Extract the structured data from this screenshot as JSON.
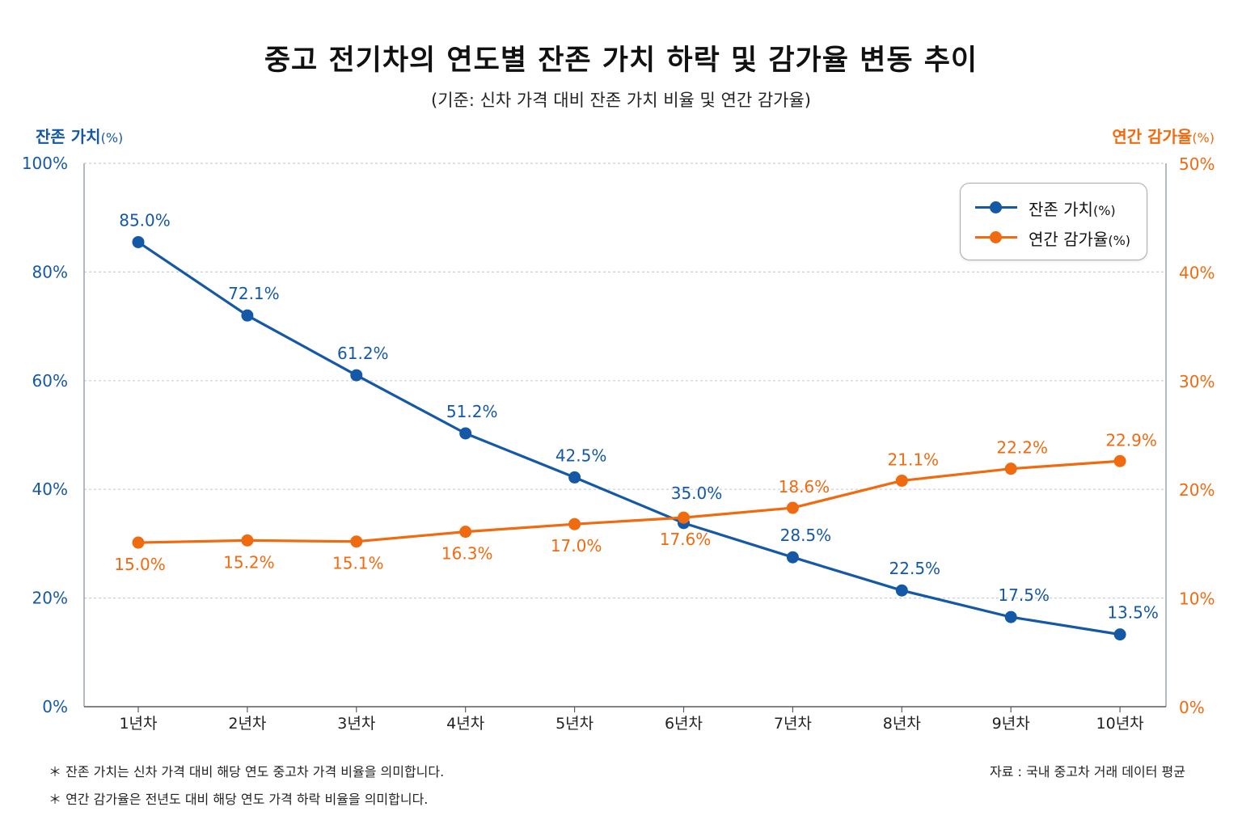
{
  "title": "중고 전기차의 연도별 잔존 가치 하락 및 감가율 변동 추이",
  "subtitle": "(기준: 신차 가격 대비 잔존 가치 비율 및 연간 감가율)",
  "axis": {
    "left_title": "잔존 가치",
    "left_unit": "(%)",
    "right_title": "연간 감가율",
    "right_unit": "(%)"
  },
  "legend": {
    "position": "top-right",
    "items": [
      {
        "name": "잔존 가치",
        "unit": "(%)"
      },
      {
        "name": "연간 감가율",
        "unit": "(%)"
      }
    ]
  },
  "notes": [
    "＊ 잔존 가치는 신차 가격 대비 해당 연도 중고차 가격 비율을 의미합니다.",
    "＊ 연간 감가율은 전년도 대비 해당 연도 가격 하락 비율을 의미합니다."
  ],
  "source": "자료 : 국내 중고차 거래 데이터 평균",
  "colors": {
    "residual": "#1558a6",
    "depreciation": "#f06a10",
    "grid": "#c9ced6",
    "axis": "#9aa3b0"
  },
  "chart_data": {
    "type": "line",
    "categories": [
      "1년차",
      "2년차",
      "3년차",
      "4년차",
      "5년차",
      "6년차",
      "7년차",
      "8년차",
      "9년차",
      "10년차"
    ],
    "y_left": {
      "range": [
        0,
        100
      ],
      "ticks": [
        "0%",
        "20%",
        "40%",
        "60%",
        "80%",
        "100%"
      ]
    },
    "y_right": {
      "range": [
        0,
        50
      ],
      "ticks": [
        "0%",
        "10%",
        "20%",
        "30%",
        "40%",
        "50%"
      ]
    },
    "grid": true,
    "series": [
      {
        "name": "잔존 가치(%)",
        "axis": "left",
        "values": [
          85.0,
          72.1,
          61.2,
          51.2,
          42.5,
          35.0,
          28.5,
          22.5,
          17.5,
          13.5
        ],
        "plotted": [
          85.5,
          72.0,
          61.0,
          50.3,
          42.2,
          33.8,
          27.5,
          21.4,
          16.5,
          13.3
        ],
        "labels": [
          "85.0%",
          "72.1%",
          "61.2%",
          "51.2%",
          "42.5%",
          "35.0%",
          "28.5%",
          "22.5%",
          "17.5%",
          "13.5%"
        ]
      },
      {
        "name": "연간 감가율(%)",
        "axis": "right",
        "values": [
          15.0,
          15.2,
          15.1,
          16.3,
          17.0,
          17.6,
          18.6,
          21.1,
          22.2,
          22.9
        ],
        "plotted": [
          15.1,
          15.3,
          15.2,
          16.1,
          16.8,
          17.4,
          18.3,
          20.8,
          21.9,
          22.6
        ],
        "labels": [
          "15.0%",
          "15.2%",
          "15.1%",
          "16.3%",
          "17.0%",
          "17.6%",
          "18.6%",
          "21.1%",
          "22.2%",
          "22.9%"
        ]
      }
    ]
  }
}
